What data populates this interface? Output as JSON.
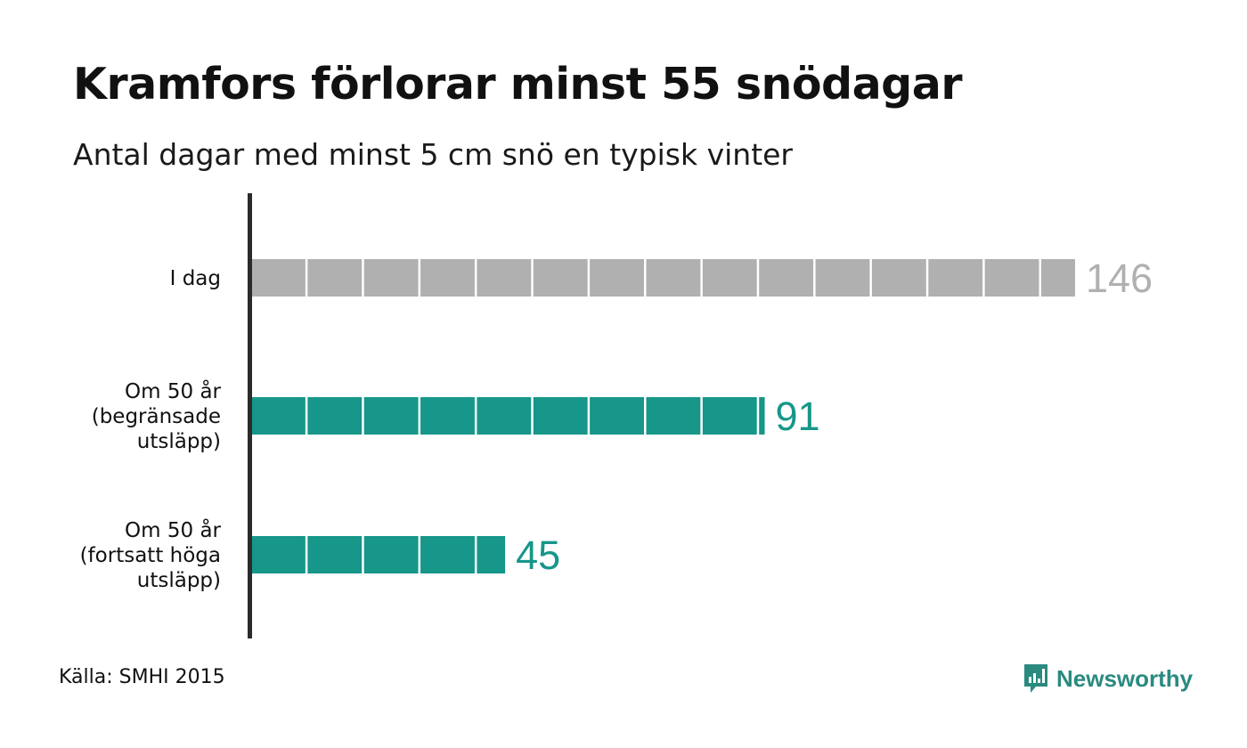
{
  "title": "Kramfors förlorar minst 55 snödagar",
  "subtitle": "Antal dagar med minst 5 cm snö en typisk vinter",
  "chart_data": {
    "type": "bar",
    "orientation": "horizontal",
    "categories": [
      "I dag",
      "Om 50 år (begränsade utsläpp)",
      "Om 50 år (fortsatt höga utsläpp)"
    ],
    "category_lines": [
      [
        "I dag"
      ],
      [
        "Om 50 år",
        "(begränsade",
        "utsläpp)"
      ],
      [
        "Om 50 år",
        "(fortsatt höga",
        "utsläpp)"
      ]
    ],
    "values": [
      146,
      91,
      45
    ],
    "value_labels": [
      "146",
      "91",
      "45"
    ],
    "unit_per_block": 10,
    "colors": [
      "#b0b0b0",
      "#17968a",
      "#17968a"
    ],
    "label_colors": [
      "#b0b0b0",
      "#17968a",
      "#17968a"
    ],
    "xlim": [
      0,
      146
    ],
    "grid": false,
    "legend": "none"
  },
  "footer": {
    "source": "Källa: SMHI 2015",
    "brand": "Newsworthy",
    "brand_color": "#2a8a80",
    "brand_icon": "speech-bubble-bar-chart-icon"
  }
}
